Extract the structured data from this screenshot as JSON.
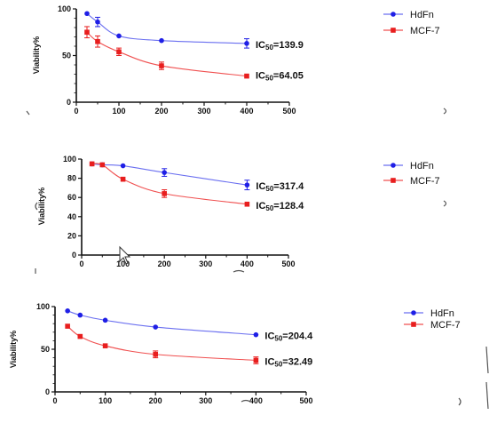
{
  "colors": {
    "hdfn": "#1f1fe6",
    "mcf7": "#e81e1e",
    "hdfn_line": "#6a6ff0",
    "mcf7_line": "#f05050",
    "axis": "#111111"
  },
  "chart_data": [
    {
      "type": "line",
      "title": "",
      "ylabel": "Viability%",
      "xlabel": "",
      "xlim": [
        0,
        500
      ],
      "ylim": [
        0,
        100
      ],
      "xticks": [
        "0",
        "100",
        "200",
        "300",
        "400",
        "500"
      ],
      "yticks": [
        "0",
        "50",
        "100"
      ],
      "grid": false,
      "legend_position": "top-right",
      "series": [
        {
          "name": "HdFn",
          "x": [
            25,
            50,
            100,
            200,
            400
          ],
          "y": [
            95,
            86,
            71,
            66,
            63
          ],
          "err": [
            0,
            5,
            0,
            0,
            5
          ],
          "ic50": "139.9"
        },
        {
          "name": "MCF-7",
          "x": [
            25,
            50,
            100,
            200,
            400
          ],
          "y": [
            75,
            65,
            54,
            39,
            28
          ],
          "err": [
            6,
            6,
            4,
            4,
            0
          ],
          "ic50": "64.05"
        }
      ]
    },
    {
      "type": "line",
      "title": "",
      "ylabel": "Viability%",
      "xlabel": "",
      "xlim": [
        0,
        500
      ],
      "ylim": [
        0,
        100
      ],
      "xticks": [
        "0",
        "100",
        "200",
        "300",
        "400",
        "500"
      ],
      "yticks": [
        "0",
        "20",
        "40",
        "60",
        "80",
        "100"
      ],
      "grid": false,
      "legend_position": "right",
      "series": [
        {
          "name": "HdFn",
          "x": [
            25,
            50,
            100,
            200,
            400
          ],
          "y": [
            95,
            94,
            93,
            86,
            73
          ],
          "err": [
            0,
            0,
            0,
            4,
            5
          ],
          "ic50": "317.4"
        },
        {
          "name": "MCF-7",
          "x": [
            25,
            50,
            100,
            200,
            400
          ],
          "y": [
            95,
            94,
            79,
            64,
            53
          ],
          "err": [
            0,
            0,
            0,
            4,
            0
          ],
          "ic50": "128.4"
        }
      ]
    },
    {
      "type": "line",
      "title": "",
      "ylabel": "Viability%",
      "xlabel": "",
      "xlim": [
        0,
        500
      ],
      "ylim": [
        0,
        100
      ],
      "xticks": [
        "0",
        "100",
        "200",
        "300",
        "400",
        "500"
      ],
      "yticks": [
        "0",
        "50",
        "100"
      ],
      "grid": false,
      "legend_position": "top-right",
      "series": [
        {
          "name": "HdFn",
          "x": [
            25,
            50,
            100,
            200,
            400
          ],
          "y": [
            95,
            90,
            84,
            76,
            67
          ],
          "err": [
            0,
            0,
            0,
            0,
            0
          ],
          "ic50": "204.4"
        },
        {
          "name": "MCF-7",
          "x": [
            25,
            50,
            100,
            200,
            400
          ],
          "y": [
            77,
            65,
            54,
            44,
            37
          ],
          "err": [
            0,
            0,
            0,
            4,
            4
          ],
          "ic50": "32.49"
        }
      ]
    }
  ]
}
